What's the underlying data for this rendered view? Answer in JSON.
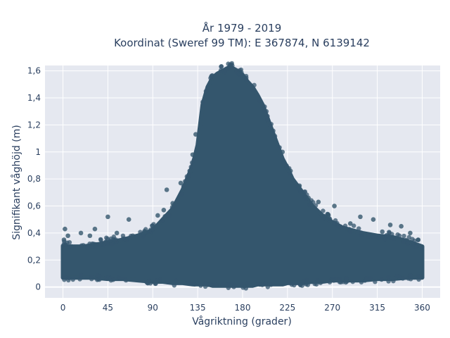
{
  "chart_data": {
    "type": "scatter",
    "title_line1": "År 1979 - 2019",
    "title_line2": "Koordinat (Sweref 99 TM): E 367874, N 6139142",
    "xlabel": "Vågriktning (grader)",
    "ylabel": "Signifikant våghöjd (m)",
    "xlim": [
      -18,
      378
    ],
    "ylim": [
      -0.08,
      1.64
    ],
    "xticks": [
      0,
      45,
      90,
      135,
      180,
      225,
      270,
      315,
      360
    ],
    "xtick_labels": [
      "0",
      "45",
      "90",
      "135",
      "180",
      "225",
      "270",
      "315",
      "360"
    ],
    "yticks": [
      0,
      0.2,
      0.4,
      0.6,
      0.8,
      1.0,
      1.2,
      1.4,
      1.6
    ],
    "ytick_labels": [
      "0",
      "0,2",
      "0,4",
      "0,6",
      "0,8",
      "1",
      "1,2",
      "1,4",
      "1,6"
    ],
    "grid": true,
    "marker_color": "#34566d",
    "plot_bgcolor": "#e5e8f0",
    "envelope": {
      "description_x": [
        0,
        10,
        20,
        30,
        45,
        60,
        75,
        90,
        100,
        110,
        120,
        130,
        135,
        140,
        145,
        150,
        155,
        160,
        165,
        170,
        175,
        180,
        185,
        190,
        195,
        200,
        205,
        210,
        215,
        220,
        225,
        230,
        240,
        250,
        260,
        270,
        280,
        290,
        300,
        315,
        330,
        345,
        360
      ],
      "upper_height": [
        0.3,
        0.3,
        0.3,
        0.31,
        0.33,
        0.35,
        0.38,
        0.42,
        0.5,
        0.58,
        0.72,
        0.9,
        1.05,
        1.35,
        1.48,
        1.55,
        1.58,
        1.6,
        1.62,
        1.62,
        1.6,
        1.57,
        1.52,
        1.48,
        1.42,
        1.35,
        1.25,
        1.15,
        1.05,
        0.95,
        0.88,
        0.8,
        0.7,
        0.6,
        0.53,
        0.48,
        0.44,
        0.42,
        0.4,
        0.38,
        0.37,
        0.34,
        0.3
      ],
      "lower_height": [
        0.07,
        0.07,
        0.07,
        0.07,
        0.06,
        0.06,
        0.05,
        0.04,
        0.04,
        0.03,
        0.03,
        0.02,
        0.02,
        0.02,
        0.02,
        0.01,
        0.01,
        0.01,
        0.01,
        0.01,
        0.01,
        0.01,
        0.01,
        0.01,
        0.02,
        0.02,
        0.02,
        0.02,
        0.02,
        0.02,
        0.03,
        0.03,
        0.03,
        0.04,
        0.04,
        0.05,
        0.05,
        0.05,
        0.05,
        0.06,
        0.06,
        0.07,
        0.07
      ]
    },
    "outliers": [
      {
        "x": 2,
        "y": 0.43
      },
      {
        "x": 5,
        "y": 0.38
      },
      {
        "x": 1,
        "y": 0.35
      },
      {
        "x": 18,
        "y": 0.4
      },
      {
        "x": 27,
        "y": 0.38
      },
      {
        "x": 32,
        "y": 0.43
      },
      {
        "x": 45,
        "y": 0.52
      },
      {
        "x": 54,
        "y": 0.4
      },
      {
        "x": 66,
        "y": 0.5
      },
      {
        "x": 70,
        "y": 0.38
      },
      {
        "x": 82,
        "y": 0.41
      },
      {
        "x": 87,
        "y": 0.38
      },
      {
        "x": 95,
        "y": 0.53
      },
      {
        "x": 101,
        "y": 0.57
      },
      {
        "x": 104,
        "y": 0.72
      },
      {
        "x": 110,
        "y": 0.62
      },
      {
        "x": 118,
        "y": 0.77
      },
      {
        "x": 127,
        "y": 0.86
      },
      {
        "x": 130,
        "y": 0.98
      },
      {
        "x": 133,
        "y": 1.13
      },
      {
        "x": 220,
        "y": 1.0
      },
      {
        "x": 228,
        "y": 0.86
      },
      {
        "x": 237,
        "y": 0.75
      },
      {
        "x": 246,
        "y": 0.66
      },
      {
        "x": 256,
        "y": 0.63
      },
      {
        "x": 266,
        "y": 0.53
      },
      {
        "x": 272,
        "y": 0.6
      },
      {
        "x": 288,
        "y": 0.47
      },
      {
        "x": 298,
        "y": 0.52
      },
      {
        "x": 311,
        "y": 0.5
      },
      {
        "x": 320,
        "y": 0.41
      },
      {
        "x": 328,
        "y": 0.46
      },
      {
        "x": 339,
        "y": 0.45
      },
      {
        "x": 348,
        "y": 0.4
      },
      {
        "x": 356,
        "y": 0.35
      }
    ]
  }
}
